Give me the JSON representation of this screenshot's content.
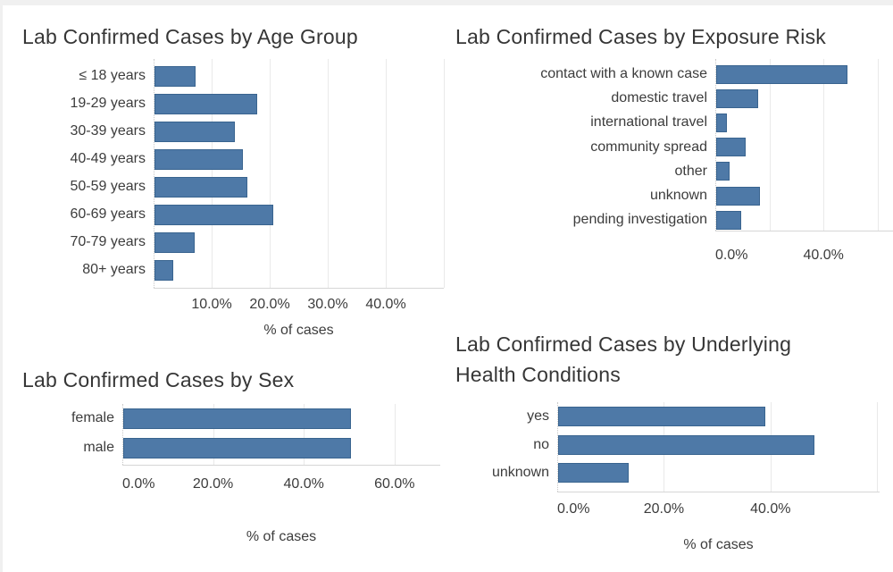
{
  "page": {
    "background": "#ffffff"
  },
  "theme": {
    "bar_fill": "#4e79a7",
    "bar_border": "#39648f",
    "gridline": "#e9e9e9",
    "axis_line": "#d6d6d6",
    "zero_line": "#c9c9c9",
    "title_color": "#363636",
    "label_color": "#3c3c3c"
  },
  "chart_data": [
    {
      "type": "bar",
      "orientation": "horizontal",
      "title": "Lab Confirmed Cases by Age Group",
      "categories": [
        "≤ 18 years",
        "19-29 years",
        "30-39 years",
        "40-49 years",
        "50-59 years",
        "60-69 years",
        "70-79 years",
        "80+ years"
      ],
      "values": [
        7.1,
        17.7,
        13.9,
        15.3,
        16.0,
        20.5,
        6.9,
        3.2
      ],
      "value_unit": "% of cases",
      "xlabel": "% of cases",
      "xlim": [
        0,
        50
      ],
      "grid_on": true,
      "grid_pcts": [
        10,
        20,
        30,
        40,
        50
      ],
      "xticks": [
        {
          "pct": 10,
          "label": "10.0%"
        },
        {
          "pct": 20,
          "label": "20.0%"
        },
        {
          "pct": 30,
          "label": "30.0%"
        },
        {
          "pct": 40,
          "label": "40.0%"
        }
      ]
    },
    {
      "type": "bar",
      "orientation": "horizontal",
      "title": "Lab Confirmed Cases by Exposure Risk",
      "categories": [
        "contact with a known case",
        "domestic travel",
        "international travel",
        "community spread",
        "other",
        "unknown",
        "pending investigation"
      ],
      "values": [
        48.5,
        15.5,
        4.0,
        10.9,
        5.0,
        16.2,
        9.2
      ],
      "value_unit": "% of cases",
      "xlabel": "",
      "xlim": [
        0,
        65.7
      ],
      "grid_on": true,
      "grid_pcts": [
        20,
        40,
        60
      ],
      "xticks": [
        {
          "pct": 0,
          "label": "0.0%"
        },
        {
          "pct": 40,
          "label": "40.0%"
        }
      ]
    },
    {
      "type": "bar",
      "orientation": "horizontal",
      "title": "Lab Confirmed Cases by Sex",
      "categories": [
        "female",
        "male"
      ],
      "values": [
        50.2,
        50.1
      ],
      "value_unit": "% of cases",
      "xlabel": "% of cases",
      "xlim": [
        0,
        70
      ],
      "grid_on": true,
      "grid_pcts": [
        20,
        40,
        60
      ],
      "xticks": [
        {
          "pct": 0,
          "label": "0.0%"
        },
        {
          "pct": 20,
          "label": "20.0%"
        },
        {
          "pct": 40,
          "label": "40.0%"
        },
        {
          "pct": 60,
          "label": "60.0%"
        }
      ]
    },
    {
      "type": "bar",
      "orientation": "horizontal",
      "title": "Lab Confirmed Cases by Underlying Health Conditions",
      "categories": [
        "yes",
        "no",
        "unknown"
      ],
      "values": [
        38.9,
        48.1,
        13.2
      ],
      "value_unit": "% of cases",
      "xlabel": "% of cases",
      "xlim": [
        0,
        60.5
      ],
      "grid_on": true,
      "grid_pcts": [
        20,
        40,
        60
      ],
      "xticks": [
        {
          "pct": 0,
          "label": "0.0%"
        },
        {
          "pct": 20,
          "label": "20.0%"
        },
        {
          "pct": 40,
          "label": "40.0%"
        }
      ]
    }
  ]
}
